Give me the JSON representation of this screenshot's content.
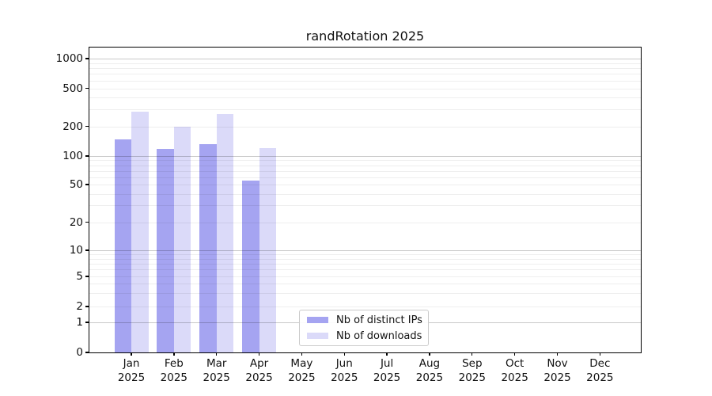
{
  "chart_data": {
    "type": "bar",
    "title": "randRotation 2025",
    "categories": [
      "Jan 2025",
      "Feb 2025",
      "Mar 2025",
      "Apr 2025",
      "May 2025",
      "Jun 2025",
      "Jul 2025",
      "Aug 2025",
      "Sep 2025",
      "Oct 2025",
      "Nov 2025",
      "Dec 2025"
    ],
    "series": [
      {
        "name": "Nb of distinct IPs",
        "color": "#a5a4f1",
        "values": [
          148,
          119,
          132,
          55,
          null,
          null,
          null,
          null,
          null,
          null,
          null,
          null
        ]
      },
      {
        "name": "Nb of downloads",
        "color": "#dbdaf9",
        "values": [
          285,
          200,
          269,
          120,
          null,
          null,
          null,
          null,
          null,
          null,
          null,
          null
        ]
      }
    ],
    "xlabel": "",
    "ylabel": "",
    "yscale": "symlog",
    "yticks": [
      0,
      1,
      2,
      5,
      10,
      20,
      50,
      100,
      200,
      500,
      1000
    ],
    "ylim": [
      0,
      1300
    ],
    "grid": "horizontal, minor log gridlines",
    "legend_position": "lower center inside plot",
    "colors": {
      "bar_dark": "#a5a4f1",
      "bar_light": "#dbdaf9",
      "grid_major": "#c9c9c9",
      "grid_minor": "#ededed",
      "axis": "#000000",
      "background": "#ffffff"
    }
  }
}
